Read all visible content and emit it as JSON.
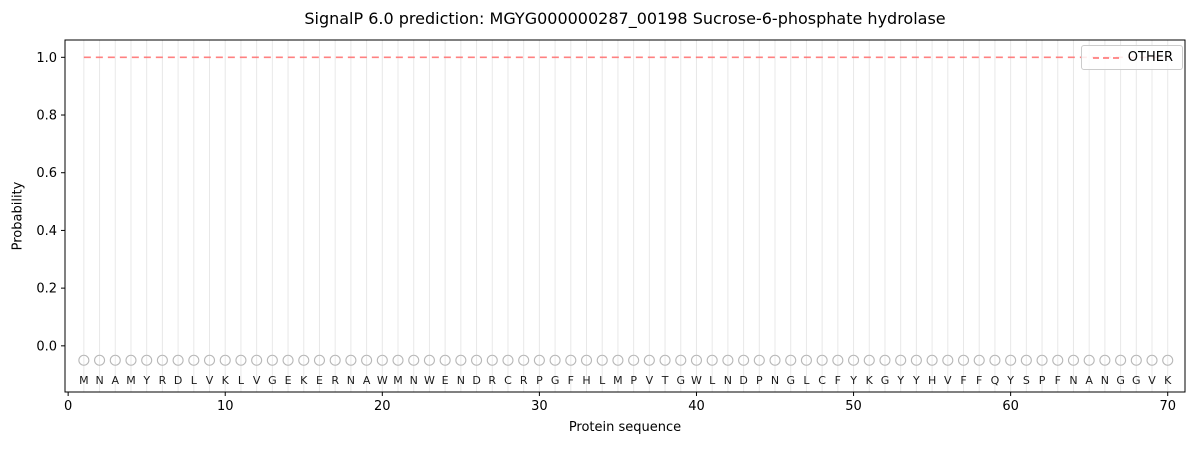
{
  "chart_data": {
    "type": "line",
    "title": "SignalP 6.0 prediction: MGYG000000287_00198 Sucrose-6-phosphate hydrolase",
    "xlabel": "Protein sequence",
    "ylabel": "Probability",
    "xticks": [
      0,
      10,
      20,
      30,
      40,
      50,
      60,
      70
    ],
    "yticks": [
      0.0,
      0.2,
      0.4,
      0.6,
      0.8,
      1.0
    ],
    "xlim": [
      -0.2,
      71.1
    ],
    "ylim": [
      -0.16,
      1.06
    ],
    "grid": {
      "vertical_per_residue": true,
      "color": "#e8e8e8"
    },
    "sequence": "MNAMYRDLVKLVGEKERNAWMNWENDRCRPGFHLMPVTGWLNDPNGLCFYKGYYHVFFQYSPFNANGGVK",
    "residue_marker": {
      "symbol": "open-circle",
      "y": -0.05,
      "color": "#b8b8b8"
    },
    "residue_letter_color": "#1a1a1a",
    "series": [
      {
        "name": "OTHER",
        "color": "#ff6b6b",
        "line_style": "dashed",
        "x": [
          1,
          2,
          3,
          4,
          5,
          6,
          7,
          8,
          9,
          10,
          11,
          12,
          13,
          14,
          15,
          16,
          17,
          18,
          19,
          20,
          21,
          22,
          23,
          24,
          25,
          26,
          27,
          28,
          29,
          30,
          31,
          32,
          33,
          34,
          35,
          36,
          37,
          38,
          39,
          40,
          41,
          42,
          43,
          44,
          45,
          46,
          47,
          48,
          49,
          50,
          51,
          52,
          53,
          54,
          55,
          56,
          57,
          58,
          59,
          60,
          61,
          62,
          63,
          64,
          65,
          66,
          67,
          68,
          69,
          70
        ],
        "values": [
          1.0,
          1.0,
          1.0,
          1.0,
          1.0,
          1.0,
          1.0,
          1.0,
          1.0,
          1.0,
          1.0,
          1.0,
          1.0,
          1.0,
          1.0,
          1.0,
          1.0,
          1.0,
          1.0,
          1.0,
          1.0,
          1.0,
          1.0,
          1.0,
          1.0,
          1.0,
          1.0,
          1.0,
          1.0,
          1.0,
          1.0,
          1.0,
          1.0,
          1.0,
          1.0,
          1.0,
          1.0,
          1.0,
          1.0,
          1.0,
          1.0,
          1.0,
          1.0,
          1.0,
          1.0,
          1.0,
          1.0,
          1.0,
          1.0,
          1.0,
          1.0,
          1.0,
          1.0,
          1.0,
          1.0,
          1.0,
          1.0,
          1.0,
          1.0,
          1.0,
          1.0,
          1.0,
          1.0,
          1.0,
          1.0,
          1.0,
          1.0,
          1.0,
          1.0,
          1.0
        ]
      }
    ],
    "legend": {
      "position": "upper-right",
      "entries": [
        "OTHER"
      ]
    }
  }
}
